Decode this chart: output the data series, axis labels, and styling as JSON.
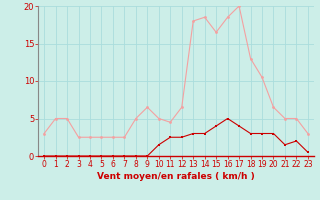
{
  "x": [
    0,
    1,
    2,
    3,
    4,
    5,
    6,
    7,
    8,
    9,
    10,
    11,
    12,
    13,
    14,
    15,
    16,
    17,
    18,
    19,
    20,
    21,
    22,
    23
  ],
  "rafales": [
    3,
    5,
    5,
    2.5,
    2.5,
    2.5,
    2.5,
    2.5,
    5,
    6.5,
    5,
    4.5,
    6.5,
    18,
    18.5,
    16.5,
    18.5,
    20,
    13,
    10.5,
    6.5,
    5,
    5,
    3
  ],
  "moyen": [
    0,
    0,
    0,
    0,
    0,
    0,
    0,
    0,
    0,
    0,
    1.5,
    2.5,
    2.5,
    3,
    3,
    4,
    5,
    4,
    3,
    3,
    3,
    1.5,
    2,
    0.5
  ],
  "line_color_rafales": "#f4a0a0",
  "line_color_moyen": "#cc0000",
  "bg_color": "#cceee8",
  "grid_color": "#aadddd",
  "xlabel": "Vent moyen/en rafales ( km/h )",
  "xlabel_color": "#cc0000",
  "tick_color": "#cc0000",
  "ylim": [
    0,
    20
  ],
  "xlim": [
    -0.5,
    23.5
  ],
  "yticks": [
    0,
    5,
    10,
    15,
    20
  ],
  "xticks": [
    0,
    1,
    2,
    3,
    4,
    5,
    6,
    7,
    8,
    9,
    10,
    11,
    12,
    13,
    14,
    15,
    16,
    17,
    18,
    19,
    20,
    21,
    22,
    23
  ]
}
